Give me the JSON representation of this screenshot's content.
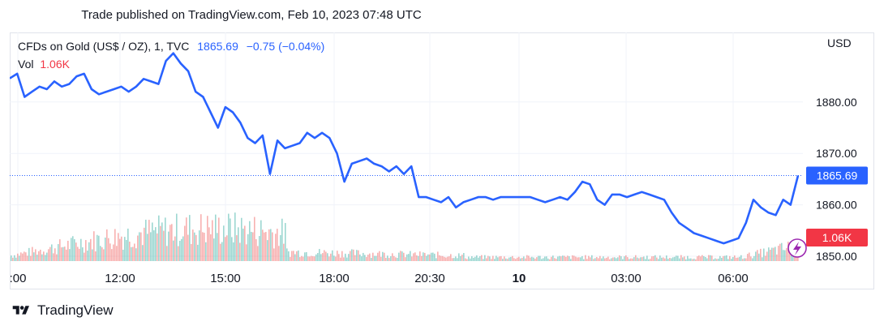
{
  "header": {
    "caption": "Trade published on TradingView.com, Feb 10, 2023 07:48 UTC"
  },
  "legend": {
    "symbol": "CFDs on Gold (US$ / OZ), 1, TVC",
    "price": "1865.69",
    "change": "−0.75 (−0.04%)",
    "vol_label": "Vol",
    "vol_value": "1.06K"
  },
  "footer": {
    "brand": "TradingView"
  },
  "colors": {
    "line": "#2962ff",
    "up": "#26a69a",
    "down": "#ef5350",
    "price_tag": "#2962ff",
    "vol_tag": "#f23645",
    "grid": "#f0f3fa"
  },
  "chart_data": {
    "type": "line",
    "currency_label": "USD",
    "x_tick_labels": [
      ":00",
      "12:00",
      "15:00",
      "18:00",
      "20:30",
      "10",
      "03:00",
      "06:00"
    ],
    "y_ticks": [
      1850,
      1860,
      1870,
      1880
    ],
    "y_tick_labels": [
      "1850.00",
      "1860.00",
      "1870.00",
      "1880.00"
    ],
    "ylim": [
      1850,
      1890
    ],
    "last_price": 1865.69,
    "last_price_label": "1865.69",
    "last_volume_label": "1.06K",
    "grid": true,
    "series": [
      {
        "values": [
          1884.6,
          1885.5,
          1881.0,
          1882.0,
          1883.0,
          1882.5,
          1884.0,
          1883.0,
          1883.5,
          1885.0,
          1885.5,
          1882.5,
          1881.5,
          1882.0,
          1882.5,
          1883.0,
          1882.0,
          1883.0,
          1884.5,
          1884.0,
          1883.5,
          1888.0,
          1889.5,
          1887.5,
          1886.0,
          1882.0,
          1881.0,
          1878.0,
          1875.0,
          1879.0,
          1878.0,
          1876.0,
          1873.0,
          1872.0,
          1873.5,
          1866.0,
          1872.5,
          1871.0,
          1871.5,
          1872.0,
          1874.0,
          1873.0,
          1874.0,
          1873.0,
          1870.0,
          1864.5,
          1868.0,
          1868.5,
          1869.0,
          1868.0,
          1867.5,
          1866.5,
          1867.5,
          1866.0,
          1867.5,
          1861.5,
          1861.5,
          1861.0,
          1860.5,
          1861.5,
          1859.5,
          1860.5,
          1861.0,
          1861.5,
          1861.5,
          1861.0,
          1861.5,
          1861.5,
          1861.5,
          1861.5,
          1861.5,
          1861.0,
          1860.5,
          1861.0,
          1861.5,
          1861.0,
          1862.5,
          1864.5,
          1864.0,
          1861.0,
          1860.0,
          1862.0,
          1862.0,
          1861.5,
          1862.0,
          1862.5,
          1862.0,
          1861.5,
          1861.0,
          1858.5,
          1856.5,
          1855.5,
          1854.5,
          1854.0,
          1853.5,
          1853.0,
          1852.5,
          1853.0,
          1853.5,
          1856.5,
          1861.0,
          1859.5,
          1858.5,
          1858.0,
          1861.0,
          1860.0,
          1865.69
        ]
      }
    ]
  }
}
